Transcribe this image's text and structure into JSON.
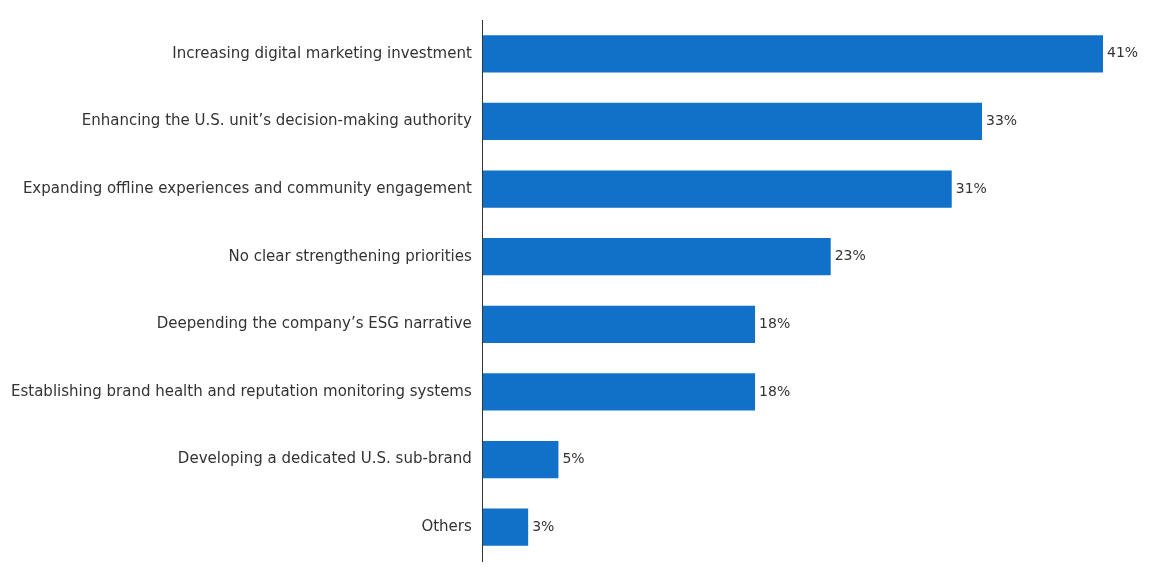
{
  "chart_data": {
    "type": "bar",
    "orientation": "horizontal",
    "categories": [
      "Increasing digital marketing investment",
      "Enhancing the U.S. unit’s decision-making authority",
      "Expanding offline experiences and community engagement",
      "No clear strengthening priorities",
      "Deepending the company’s ESG narrative",
      "Establishing brand health and reputation monitoring systems",
      "Developing a dedicated U.S. sub-brand",
      "Others"
    ],
    "values": [
      41,
      33,
      31,
      23,
      18,
      18,
      5,
      3
    ],
    "value_labels": [
      "41%",
      "33%",
      "31%",
      "23%",
      "18%",
      "18%",
      "5%",
      "3%"
    ],
    "color": "#1170c8",
    "legend": false
  }
}
